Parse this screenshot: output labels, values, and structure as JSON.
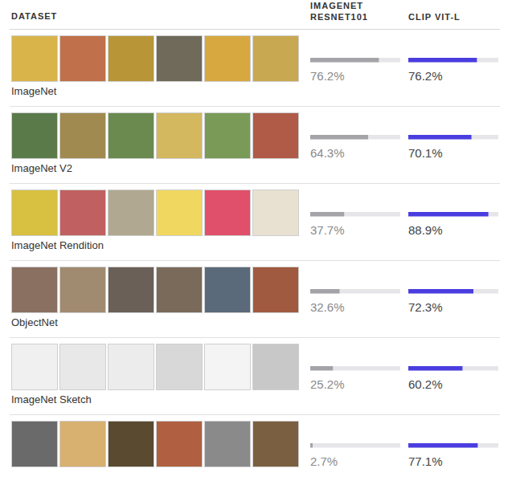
{
  "chart_data": {
    "type": "bar",
    "orientation": "horizontal",
    "ylabel": "DATASET",
    "categories": [
      "ImageNet",
      "ImageNet V2",
      "ImageNet Rendition",
      "ObjectNet",
      "ImageNet Sketch",
      null
    ],
    "series": [
      {
        "name": "IMAGENET RESNET101",
        "color": "#a3a3a8",
        "values": [
          76.2,
          64.3,
          37.7,
          32.6,
          25.2,
          2.7
        ],
        "value_labels": [
          "76.2%",
          "64.3%",
          "37.7%",
          "32.6%",
          "25.2%",
          "2.7%"
        ]
      },
      {
        "name": "CLIP VIT-L",
        "color": "#4a3de0",
        "values": [
          76.2,
          70.1,
          88.9,
          72.3,
          60.2,
          77.1
        ],
        "value_labels": [
          "76.2%",
          "70.1%",
          "88.9%",
          "72.3%",
          "60.2%",
          "77.1%"
        ]
      }
    ],
    "xlim": [
      0,
      100
    ],
    "grid": false,
    "data_labels": true,
    "tick_labels": false
  }
}
